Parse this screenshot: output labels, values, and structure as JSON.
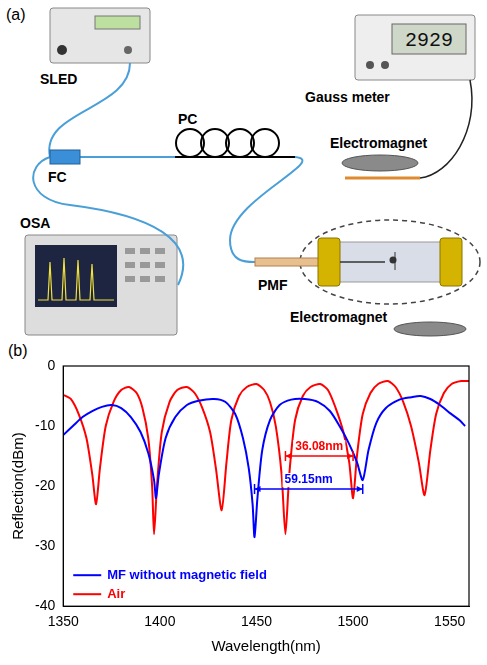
{
  "diagram": {
    "panel_label": "(a)",
    "devices": {
      "source": "SLED",
      "meter": "Gauss meter",
      "meter_display": "2929",
      "magnet_top": "Electromagnet",
      "magnet_bottom": "Electromagnet",
      "analyzer": "OSA",
      "coupler": "FC",
      "controller": "PC",
      "fiber": "PMF"
    }
  },
  "chart_data": {
    "type": "line",
    "panel_label": "(b)",
    "x_label": "Wavelength(nm)",
    "y_label": "Reflection(dBm)",
    "xlim": [
      1350,
      1560
    ],
    "xticks": [
      1350,
      1400,
      1450,
      1500,
      1550
    ],
    "ylim": [
      -40,
      0
    ],
    "yticks": [
      -40,
      -30,
      -20,
      -10,
      0
    ],
    "grid": false,
    "legend": "lower left",
    "series": [
      {
        "name": "MF without magnetic field",
        "color": "#0000ff",
        "x": [
          1350,
          1355,
          1360,
          1365,
          1370,
          1375,
          1380,
          1385,
          1390,
          1394,
          1397,
          1398,
          1399.5,
          1403,
          1408,
          1414,
          1420,
          1428,
          1434,
          1439,
          1443,
          1446,
          1448,
          1449,
          1450.5,
          1453,
          1457,
          1462,
          1468,
          1475,
          1482,
          1488,
          1493,
          1498,
          1502,
          1505,
          1508,
          1512,
          1517,
          1524,
          1530,
          1535,
          1540,
          1545,
          1550,
          1555,
          1558
        ],
        "values": [
          -11.5,
          -10,
          -8.5,
          -7.5,
          -6.8,
          -6.5,
          -7,
          -8.5,
          -11,
          -14.5,
          -19,
          -22,
          -18,
          -12,
          -8.5,
          -6.5,
          -5.8,
          -5.5,
          -6,
          -8,
          -12,
          -17,
          -23,
          -28.5,
          -22,
          -14,
          -9,
          -6.5,
          -5.6,
          -5.5,
          -6,
          -7.5,
          -10,
          -13,
          -16,
          -19,
          -14,
          -9.5,
          -7,
          -5.6,
          -5.2,
          -5,
          -5.5,
          -6.5,
          -7.8,
          -9,
          -10
        ]
      },
      {
        "name": "Air",
        "color": "#ff0000",
        "x": [
          1350,
          1354,
          1358,
          1362,
          1365,
          1367,
          1369,
          1372,
          1376,
          1380,
          1384,
          1388,
          1391,
          1394,
          1396,
          1397,
          1398.5,
          1401,
          1405,
          1409,
          1414,
          1418,
          1422,
          1426,
          1429,
          1432,
          1434.5,
          1437,
          1441,
          1445,
          1450,
          1454,
          1457,
          1460,
          1463,
          1465,
          1467,
          1470,
          1474,
          1478,
          1483,
          1487,
          1491,
          1495,
          1498,
          1500,
          1502,
          1505,
          1509,
          1513,
          1518,
          1522,
          1526,
          1530,
          1534,
          1537,
          1540,
          1543,
          1547,
          1551,
          1556,
          1560
        ],
        "values": [
          -4.8,
          -5.5,
          -8,
          -12,
          -18,
          -23,
          -17,
          -10,
          -6,
          -4,
          -3.5,
          -4.5,
          -7,
          -12,
          -20,
          -28,
          -20,
          -11,
          -6,
          -4,
          -3.5,
          -4.5,
          -7,
          -11,
          -17,
          -24,
          -16,
          -9,
          -5,
          -3.5,
          -3,
          -4,
          -6,
          -10,
          -18,
          -28,
          -18,
          -9,
          -5,
          -3.5,
          -3,
          -4,
          -7,
          -11,
          -16,
          -22,
          -15,
          -8,
          -4.5,
          -3,
          -2.5,
          -3.5,
          -6,
          -10,
          -16,
          -21.5,
          -14,
          -8,
          -4.5,
          -3,
          -2.5,
          -2.5
        ]
      }
    ],
    "annotations": [
      {
        "text": "36.08nm",
        "color": "#ff0000",
        "x": [
          1465,
          1500
        ],
        "y": -15
      },
      {
        "text": "59.15nm",
        "color": "#0000ff",
        "x": [
          1449,
          1505
        ],
        "y": -20.5
      }
    ]
  }
}
